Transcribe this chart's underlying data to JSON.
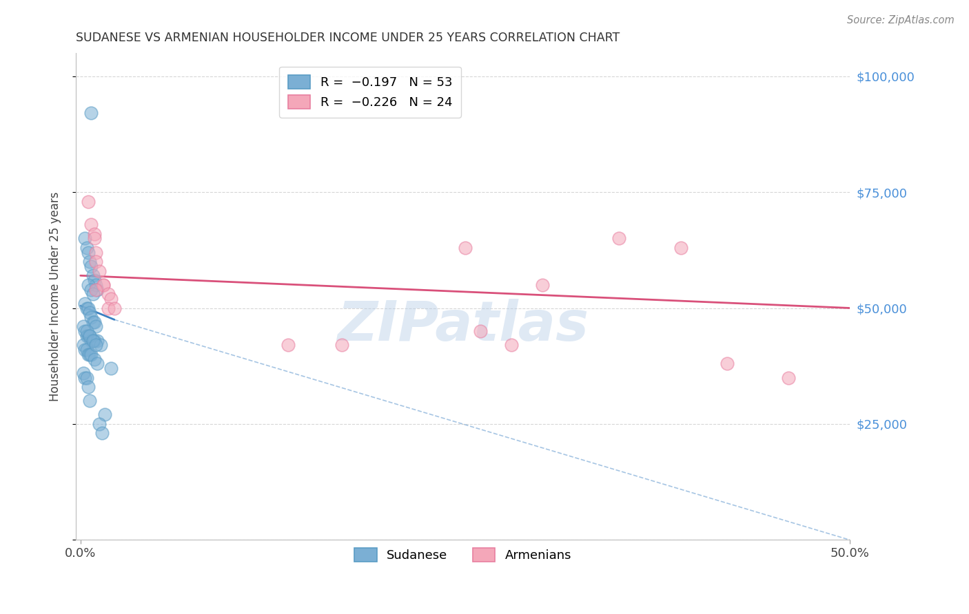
{
  "title": "SUDANESE VS ARMENIAN HOUSEHOLDER INCOME UNDER 25 YEARS CORRELATION CHART",
  "source": "Source: ZipAtlas.com",
  "ylabel_label": "Householder Income Under 25 years",
  "xlim": [
    0.0,
    0.5
  ],
  "ylim": [
    0,
    105000
  ],
  "watermark": "ZIPatlas",
  "sudanese_x": [
    0.007,
    0.003,
    0.004,
    0.005,
    0.006,
    0.007,
    0.008,
    0.009,
    0.01,
    0.011,
    0.003,
    0.004,
    0.005,
    0.006,
    0.007,
    0.008,
    0.009,
    0.01,
    0.002,
    0.003,
    0.004,
    0.005,
    0.006,
    0.007,
    0.008,
    0.009,
    0.011,
    0.013,
    0.002,
    0.003,
    0.004,
    0.005,
    0.006,
    0.007,
    0.009,
    0.011,
    0.002,
    0.003,
    0.004,
    0.005,
    0.006,
    0.016,
    0.02,
    0.005,
    0.007,
    0.008,
    0.004,
    0.006,
    0.008,
    0.01,
    0.012,
    0.014
  ],
  "sudanese_y": [
    92000,
    65000,
    63000,
    62000,
    60000,
    59000,
    57000,
    56000,
    55000,
    54000,
    51000,
    50000,
    50000,
    49000,
    48000,
    47000,
    47000,
    46000,
    46000,
    45000,
    44000,
    44000,
    44000,
    43000,
    43000,
    43000,
    43000,
    42000,
    42000,
    41000,
    41000,
    40000,
    40000,
    40000,
    39000,
    38000,
    36000,
    35000,
    35000,
    33000,
    30000,
    27000,
    37000,
    55000,
    54000,
    53000,
    45000,
    44000,
    43000,
    42000,
    25000,
    23000
  ],
  "armenian_x": [
    0.005,
    0.007,
    0.009,
    0.009,
    0.01,
    0.01,
    0.012,
    0.015,
    0.015,
    0.01,
    0.018,
    0.02,
    0.018,
    0.022,
    0.25,
    0.3,
    0.35,
    0.39,
    0.42,
    0.46,
    0.28,
    0.26,
    0.17,
    0.135
  ],
  "armenian_y": [
    73000,
    68000,
    66000,
    65000,
    62000,
    60000,
    58000,
    55000,
    55000,
    54000,
    53000,
    52000,
    50000,
    50000,
    63000,
    55000,
    65000,
    63000,
    38000,
    35000,
    42000,
    45000,
    42000,
    42000
  ],
  "sudanese_color": "#7bafd4",
  "sudanese_edge": "#5a9cc5",
  "armenian_color": "#f4a7b9",
  "armenian_edge": "#e87fa0",
  "trend_sudanese_color": "#3a7fc1",
  "trend_armenian_color": "#d9507a",
  "grid_color": "#cccccc",
  "background_color": "#ffffff",
  "axis_label_color": "#4a90d9",
  "title_color": "#333333",
  "trend_sud_x0": 0.0,
  "trend_sud_y0": 50500,
  "trend_sud_x1": 0.022,
  "trend_sud_y1": 47500,
  "trend_sud_dash_x1": 0.5,
  "trend_sud_dash_y1": 0,
  "trend_arm_x0": 0.0,
  "trend_arm_y0": 57000,
  "trend_arm_x1": 0.5,
  "trend_arm_y1": 50000
}
